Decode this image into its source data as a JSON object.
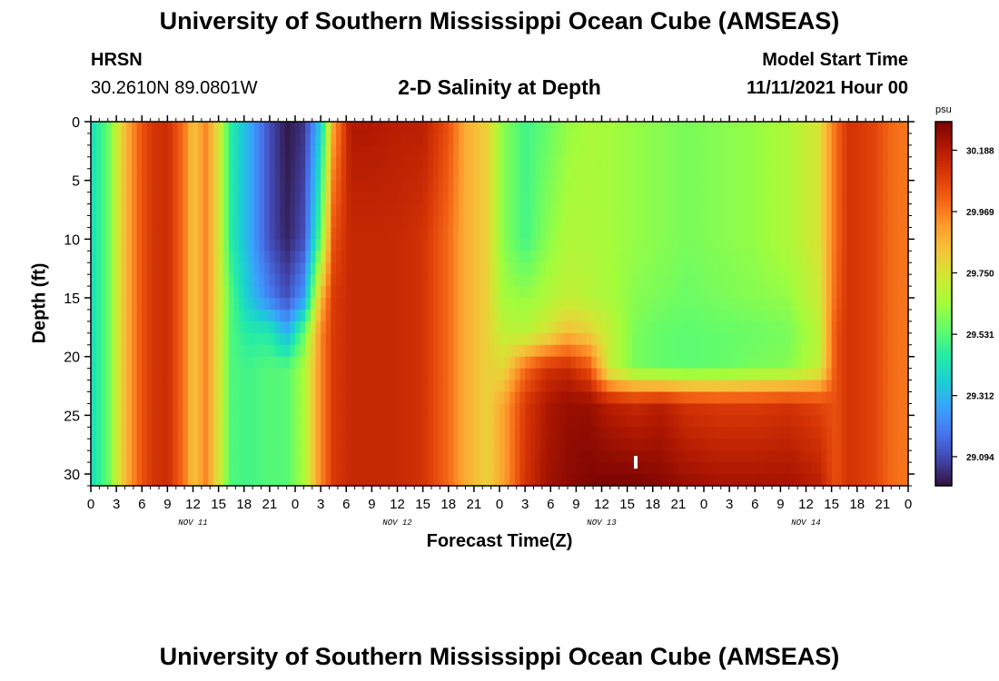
{
  "header": {
    "title": "University of Southern Mississippi Ocean Cube (AMSEAS)",
    "station": "HRSN",
    "coordinates": "30.2610N  89.0801W",
    "subtitle": "2-D Salinity at Depth",
    "model_start_label": "Model Start Time",
    "model_start_value": "11/11/2021 Hour 00"
  },
  "footer": {
    "title": "University of Southern Mississippi Ocean Cube (AMSEAS)"
  },
  "chart_data": {
    "type": "heatmap",
    "title": "2-D Salinity at Depth",
    "xlabel": "Forecast Time(Z)",
    "ylabel": "Depth (ft)",
    "x_hours_range": [
      0,
      96
    ],
    "x_tick_step_hours": 3,
    "x_tick_labels": [
      "0",
      "3",
      "6",
      "9",
      "12",
      "15",
      "18",
      "21",
      "0",
      "3",
      "6",
      "9",
      "12",
      "15",
      "18",
      "21",
      "0",
      "3",
      "6",
      "9",
      "12",
      "15",
      "18",
      "21",
      "0",
      "3",
      "6",
      "9",
      "12",
      "15",
      "18",
      "21",
      "0"
    ],
    "date_labels": [
      {
        "hour": 12,
        "label": "NOV 11"
      },
      {
        "hour": 36,
        "label": "NOV 12"
      },
      {
        "hour": 60,
        "label": "NOV 13"
      },
      {
        "hour": 84,
        "label": "NOV 14"
      }
    ],
    "ylim": [
      0,
      31
    ],
    "y_ticks": [
      0,
      5,
      10,
      15,
      20,
      25,
      30
    ],
    "y_minor_step": 1,
    "colorbar": {
      "unit": "psu",
      "range": [
        28.99,
        30.29
      ],
      "tick_values": [
        30.188,
        29.969,
        29.75,
        29.531,
        29.312,
        29.094
      ],
      "tick_labels": [
        "30.188",
        "29.969",
        "29.750",
        "29.531",
        "29.312",
        "29.094"
      ],
      "colors": [
        "#30123b",
        "#4145ab",
        "#4675ed",
        "#39a2fc",
        "#1bcfd4",
        "#24eca6",
        "#61fc6c",
        "#a4fc3b",
        "#d1e834",
        "#f3c63a",
        "#fe9b2d",
        "#f36315",
        "#d93806",
        "#b11901",
        "#7a0402"
      ]
    },
    "marker": {
      "hour": 64,
      "depth_ft": 29,
      "label": ""
    },
    "columns": [
      {
        "hour": 0,
        "profile": [
          29.4
        ]
      },
      {
        "hour": 2,
        "profile": [
          29.55
        ]
      },
      {
        "hour": 4,
        "profile": [
          29.85
        ]
      },
      {
        "hour": 6,
        "profile": [
          30.05
        ]
      },
      {
        "hour": 7.5,
        "profile": [
          30.12
        ]
      },
      {
        "hour": 9,
        "profile": [
          30.14
        ]
      },
      {
        "hour": 11,
        "profile": [
          29.98
        ]
      },
      {
        "hour": 12,
        "profile": [
          29.82
        ]
      },
      {
        "hour": 13.5,
        "profile": [
          29.95
        ]
      },
      {
        "hour": 15,
        "profile": [
          29.75
        ]
      },
      {
        "hour": 16.5,
        "profile": [
          29.45,
          29.45,
          29.52
        ]
      },
      {
        "hour": 18.5,
        "profile": [
          29.3,
          29.3,
          29.35,
          29.45,
          29.5
        ]
      },
      {
        "hour": 21,
        "profile": [
          29.1,
          29.1,
          29.2,
          29.45,
          29.53
        ]
      },
      {
        "hour": 23,
        "profile": [
          29.0,
          29.02,
          29.1,
          29.3,
          29.53
        ]
      },
      {
        "hour": 25,
        "profile": [
          29.05,
          29.1,
          29.25,
          29.55,
          29.65
        ]
      },
      {
        "hour": 27,
        "profile": [
          29.35,
          29.55,
          29.85,
          29.95
        ]
      },
      {
        "hour": 28.5,
        "profile": [
          29.9,
          30.05,
          30.1
        ]
      },
      {
        "hour": 30.5,
        "profile": [
          30.2,
          30.15
        ]
      },
      {
        "hour": 33,
        "profile": [
          30.2,
          30.15
        ]
      },
      {
        "hour": 36,
        "profile": [
          30.18,
          30.15
        ]
      },
      {
        "hour": 39,
        "profile": [
          30.18,
          30.12
        ]
      },
      {
        "hour": 42,
        "profile": [
          30.05,
          30.0
        ]
      },
      {
        "hour": 44,
        "profile": [
          29.88
        ]
      },
      {
        "hour": 46.5,
        "profile": [
          29.8
        ]
      },
      {
        "hour": 48.5,
        "profile": [
          29.6,
          29.6,
          29.64,
          29.7,
          29.78,
          29.9
        ]
      },
      {
        "hour": 51,
        "profile": [
          29.5,
          29.5,
          29.62,
          29.68,
          30.0,
          30.1,
          30.12
        ]
      },
      {
        "hour": 53.5,
        "profile": [
          29.55,
          29.6,
          29.66,
          29.75,
          30.12,
          30.2,
          30.22
        ]
      },
      {
        "hour": 56,
        "profile": [
          29.62,
          29.66,
          29.7,
          29.85,
          30.15,
          30.24,
          30.26
        ]
      },
      {
        "hour": 58.5,
        "profile": [
          29.65,
          29.66,
          29.68,
          29.8,
          30.05,
          30.24,
          30.28
        ]
      },
      {
        "hour": 61,
        "profile": [
          29.64,
          29.64,
          29.65,
          29.7,
          29.7,
          30.18,
          30.29
        ]
      },
      {
        "hour": 64,
        "profile": [
          29.62,
          29.62,
          29.6,
          29.58,
          29.58,
          30.15,
          30.29
        ]
      },
      {
        "hour": 67,
        "profile": [
          29.6,
          29.6,
          29.58,
          29.55,
          29.55,
          30.18,
          30.27
        ]
      },
      {
        "hour": 70,
        "profile": [
          29.58,
          29.58,
          29.56,
          29.54,
          29.54,
          30.12,
          30.24
        ]
      },
      {
        "hour": 74,
        "profile": [
          29.6,
          29.6,
          29.58,
          29.55,
          29.55,
          30.1,
          30.22
        ]
      },
      {
        "hour": 78,
        "profile": [
          29.62,
          29.62,
          29.6,
          29.56,
          29.58,
          30.1,
          30.22
        ]
      },
      {
        "hour": 82,
        "profile": [
          29.66,
          29.66,
          29.62,
          29.58,
          29.6,
          30.12,
          30.22
        ]
      },
      {
        "hour": 85.5,
        "profile": [
          29.75,
          29.75,
          29.72,
          29.68,
          29.7,
          30.08,
          30.18
        ]
      },
      {
        "hour": 87.5,
        "profile": [
          30.0,
          30.0,
          30.02,
          30.05
        ]
      },
      {
        "hour": 89,
        "profile": [
          30.12
        ]
      },
      {
        "hour": 92,
        "profile": [
          30.08
        ]
      },
      {
        "hour": 94,
        "profile": [
          30.0
        ]
      },
      {
        "hour": 96,
        "profile": [
          29.98
        ]
      }
    ],
    "profile_depths_ft": [
      0,
      10,
      15,
      18,
      21,
      24,
      31
    ]
  }
}
